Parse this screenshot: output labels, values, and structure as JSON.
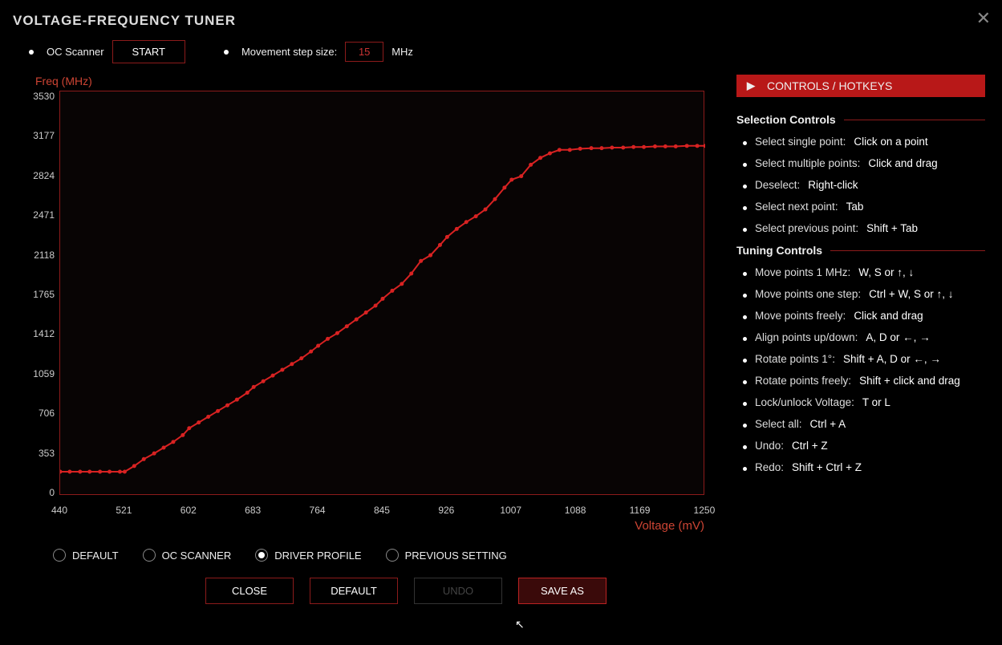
{
  "window": {
    "title": "VOLTAGE-FREQUENCY TUNER",
    "close_glyph": "✕"
  },
  "top": {
    "oc_scanner_label": "OC Scanner",
    "start_btn": "START",
    "movement_label": "Movement step size:",
    "movement_value": "15",
    "movement_unit": "MHz"
  },
  "chart": {
    "y_title": "Freq (MHz)",
    "x_title": "Voltage (mV)",
    "ylim": [
      0,
      3530
    ],
    "xlim": [
      440,
      1250
    ],
    "y_ticks": [
      3530,
      3177,
      2824,
      2471,
      2118,
      1765,
      1412,
      1059,
      706,
      353,
      0
    ],
    "x_ticks": [
      440,
      521,
      602,
      683,
      764,
      845,
      926,
      1007,
      1088,
      1169,
      1250
    ],
    "curve_color": "#d82222",
    "border_color": "#8c1b1b",
    "bg_color": "#080404",
    "points": [
      [
        440,
        210
      ],
      [
        452,
        210
      ],
      [
        465,
        210
      ],
      [
        477,
        210
      ],
      [
        490,
        210
      ],
      [
        502,
        210
      ],
      [
        515,
        210
      ],
      [
        521,
        210
      ],
      [
        533,
        260
      ],
      [
        545,
        320
      ],
      [
        558,
        370
      ],
      [
        570,
        420
      ],
      [
        582,
        470
      ],
      [
        594,
        530
      ],
      [
        602,
        590
      ],
      [
        614,
        640
      ],
      [
        626,
        690
      ],
      [
        638,
        740
      ],
      [
        650,
        790
      ],
      [
        662,
        840
      ],
      [
        675,
        900
      ],
      [
        683,
        950
      ],
      [
        695,
        1000
      ],
      [
        707,
        1050
      ],
      [
        719,
        1100
      ],
      [
        731,
        1150
      ],
      [
        743,
        1200
      ],
      [
        755,
        1260
      ],
      [
        764,
        1310
      ],
      [
        776,
        1370
      ],
      [
        788,
        1420
      ],
      [
        800,
        1480
      ],
      [
        812,
        1540
      ],
      [
        824,
        1600
      ],
      [
        836,
        1660
      ],
      [
        845,
        1720
      ],
      [
        857,
        1790
      ],
      [
        869,
        1850
      ],
      [
        881,
        1940
      ],
      [
        893,
        2050
      ],
      [
        905,
        2100
      ],
      [
        917,
        2190
      ],
      [
        926,
        2260
      ],
      [
        938,
        2330
      ],
      [
        950,
        2390
      ],
      [
        962,
        2440
      ],
      [
        974,
        2500
      ],
      [
        986,
        2590
      ],
      [
        998,
        2690
      ],
      [
        1007,
        2760
      ],
      [
        1019,
        2790
      ],
      [
        1031,
        2890
      ],
      [
        1043,
        2950
      ],
      [
        1055,
        2990
      ],
      [
        1067,
        3020
      ],
      [
        1080,
        3020
      ],
      [
        1093,
        3030
      ],
      [
        1107,
        3035
      ],
      [
        1120,
        3035
      ],
      [
        1133,
        3040
      ],
      [
        1147,
        3040
      ],
      [
        1160,
        3045
      ],
      [
        1173,
        3045
      ],
      [
        1187,
        3050
      ],
      [
        1200,
        3050
      ],
      [
        1213,
        3050
      ],
      [
        1227,
        3055
      ],
      [
        1240,
        3055
      ],
      [
        1250,
        3055
      ]
    ]
  },
  "side": {
    "header": "CONTROLS / HOTKEYS",
    "section1_title": "Selection Controls",
    "section2_title": "Tuning Controls",
    "selection": [
      {
        "k": "Select single point:",
        "v": "Click on a point"
      },
      {
        "k": "Select multiple points:",
        "v": "Click and drag"
      },
      {
        "k": "Deselect:",
        "v": "Right-click"
      },
      {
        "k": "Select next point:",
        "v": "Tab"
      },
      {
        "k": "Select previous point:",
        "v": "Shift + Tab"
      }
    ],
    "tuning": [
      {
        "k": "Move points 1 MHz:",
        "v": "W, S or ↑, ↓"
      },
      {
        "k": "Move points one step:",
        "v": "Ctrl + W, S or ↑, ↓"
      },
      {
        "k": "Move points freely:",
        "v": "Click and drag"
      },
      {
        "k": "Align points up/down:",
        "v": "A, D or ←, →"
      },
      {
        "k": "Rotate points 1°:",
        "v": "Shift + A, D or ←, →"
      },
      {
        "k": "Rotate points freely:",
        "v": "Shift + click and drag"
      },
      {
        "k": "Lock/unlock Voltage:",
        "v": "T or L"
      },
      {
        "k": "Select all:",
        "v": "Ctrl + A"
      },
      {
        "k": "Undo:",
        "v": "Ctrl + Z"
      },
      {
        "k": "Redo:",
        "v": "Shift + Ctrl + Z"
      }
    ]
  },
  "radios": {
    "items": [
      {
        "label": "DEFAULT",
        "selected": false
      },
      {
        "label": "OC SCANNER",
        "selected": false
      },
      {
        "label": "DRIVER PROFILE",
        "selected": true
      },
      {
        "label": "PREVIOUS SETTING",
        "selected": false
      }
    ]
  },
  "buttons": {
    "close": "CLOSE",
    "default": "DEFAULT",
    "undo": "UNDO",
    "save_as": "SAVE AS"
  }
}
